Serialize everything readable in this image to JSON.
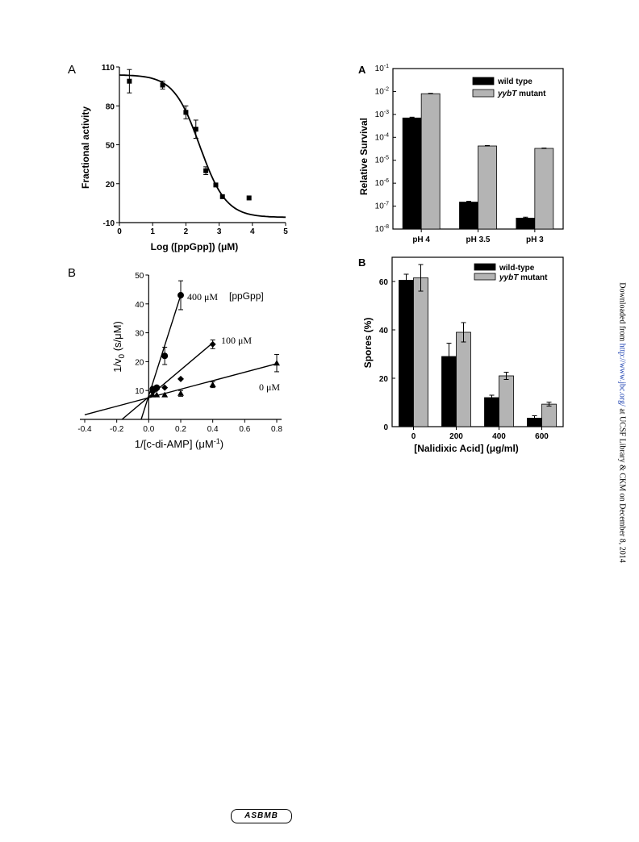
{
  "chart_data": [
    {
      "type": "line",
      "panel": "A",
      "xlabel_pre": "Log ([ppGpp]) (",
      "xlabel_unit": "μM)",
      "ylabel": "Fractional activity",
      "xlim": [
        0,
        5
      ],
      "ylim": [
        -10,
        110
      ],
      "xticks": [
        "0",
        "1",
        "2",
        "3",
        "4",
        "5"
      ],
      "yticks": [
        "-10",
        "20",
        "50",
        "80",
        "110"
      ],
      "points": [
        {
          "x": 0.3,
          "y": 99,
          "err": 9
        },
        {
          "x": 1.3,
          "y": 96,
          "err": 3
        },
        {
          "x": 2.0,
          "y": 75,
          "err": 5
        },
        {
          "x": 2.3,
          "y": 62,
          "err": 7
        },
        {
          "x": 2.6,
          "y": 30,
          "err": 3
        },
        {
          "x": 2.9,
          "y": 19,
          "err": 0
        },
        {
          "x": 3.1,
          "y": 10,
          "err": 0
        },
        {
          "x": 3.9,
          "y": 9,
          "err": 0
        }
      ],
      "fit": {
        "top": 104,
        "bottom": -6,
        "ic50_log": 2.42,
        "hill": 1.1
      }
    },
    {
      "type": "scatter",
      "panel": "B",
      "xlabel_pre": "1/[c-di-AMP] (",
      "xlabel_unit": "μM",
      "xlabel_sup": "-1",
      "ylabel_pre": "1/v",
      "ylabel_sub": "0",
      "ylabel_post": " (s/μM)",
      "xlim": [
        -0.4,
        0.8
      ],
      "ylim": [
        0,
        50
      ],
      "xticks": [
        "-0.4",
        "-0.2",
        "0.0",
        "0.2",
        "0.4",
        "0.6",
        "0.8"
      ],
      "yticks": [
        "10",
        "20",
        "30",
        "40",
        "50"
      ],
      "legend_title": "[ppGpp]",
      "series": [
        {
          "name": "400 μM",
          "marker": "circle",
          "points": [
            [
              0.025,
              10.5,
              0
            ],
            [
              0.05,
              11,
              0
            ],
            [
              0.1,
              22,
              3
            ],
            [
              0.2,
              43,
              5
            ]
          ],
          "line": [
            0,
            8.2,
            0.2,
            43
          ]
        },
        {
          "name": "100 μM",
          "marker": "diamond",
          "points": [
            [
              0.025,
              9.5,
              0
            ],
            [
              0.05,
              10.5,
              0
            ],
            [
              0.1,
              11,
              0
            ],
            [
              0.2,
              14,
              0
            ],
            [
              0.4,
              26,
              1.5
            ]
          ],
          "line": [
            0,
            7.8,
            0.4,
            26.5
          ]
        },
        {
          "name": "0 μM",
          "marker": "triangle",
          "points": [
            [
              0.025,
              8.5,
              0
            ],
            [
              0.05,
              8.5,
              0
            ],
            [
              0.1,
              8.5,
              0
            ],
            [
              0.2,
              9,
              1
            ],
            [
              0.4,
              12,
              1
            ],
            [
              0.8,
              19.5,
              3
            ]
          ],
          "line": [
            0,
            7.5,
            0.8,
            19.3
          ]
        }
      ]
    },
    {
      "type": "bar",
      "panel": "A",
      "ylabel": "Relative Survival",
      "scale": "log",
      "ylim": [
        1e-08,
        0.1
      ],
      "yticks_exp": [
        "-8",
        "-7",
        "-6",
        "-5",
        "-4",
        "-3",
        "-2",
        "-1"
      ],
      "tick_base": "10",
      "categories": [
        "pH 4",
        "pH 3.5",
        "pH 3"
      ],
      "series": [
        {
          "name": "wild type",
          "italic_part": "",
          "color": "#000000",
          "values": [
            0.0007,
            1.5e-07,
            3e-08
          ],
          "err_factor": [
            1.08,
            1.08,
            1.1
          ]
        },
        {
          "name": " mutant",
          "italic_part": "yybT",
          "color": "#b4b4b4",
          "values": [
            0.008,
            4.2e-05,
            3.3e-05
          ],
          "err_factor": [
            1.04,
            1.04,
            1.04
          ]
        }
      ],
      "legend": "top-right"
    },
    {
      "type": "bar",
      "panel": "B",
      "ylabel": "Spores (%)",
      "xlabel_pre": "[Nalidixic Acid] (",
      "xlabel_unit": "μg/ml)",
      "ylim": [
        0,
        70
      ],
      "yticks": [
        "0",
        "20",
        "40",
        "60"
      ],
      "categories": [
        "0",
        "200",
        "400",
        "600"
      ],
      "series": [
        {
          "name": "wild-type",
          "italic_part": "",
          "color": "#000000",
          "values": [
            60.5,
            29,
            12,
            3.5
          ],
          "err": [
            2.5,
            5.5,
            1,
            1
          ]
        },
        {
          "name": " mutant",
          "italic_part": "yybT",
          "color": "#b4b4b4",
          "values": [
            61.5,
            39,
            21,
            9.3
          ],
          "err": [
            5.5,
            4,
            1.5,
            0.8
          ]
        }
      ],
      "legend": "top-right"
    }
  ],
  "side_note": {
    "pre": "Downloaded from ",
    "link": "http://www.jbc.org/",
    "post": " at UCSF Library & CKM on December 8, 2014"
  },
  "footer": {
    "logo_text": "ASBMB"
  }
}
